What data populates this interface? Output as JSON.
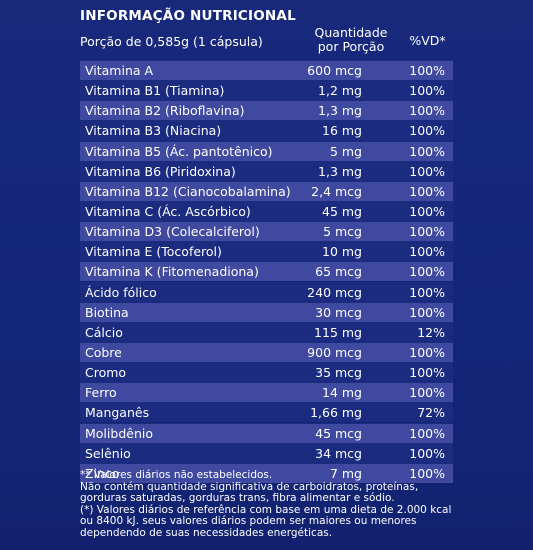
{
  "title": "INFORMAÇÃO NUTRICIONAL",
  "portion": "Porção de 0,585g (1 cápsula)",
  "headers": {
    "qty_line1": "Quantidade",
    "qty_line2": "por Porção",
    "vd": "%VD*"
  },
  "rows": [
    {
      "name": "Vitamina A",
      "qty": "600 mcg",
      "vd": "100%"
    },
    {
      "name": "Vitamina B1 (Tiamina)",
      "qty": "1,2 mg",
      "vd": "100%"
    },
    {
      "name": "Vitamina B2 (Riboflavina)",
      "qty": "1,3 mg",
      "vd": "100%"
    },
    {
      "name": "Vitamina B3 (Niacina)",
      "qty": "16 mg",
      "vd": "100%"
    },
    {
      "name": "Vitamina B5 (Ác. pantotênico)",
      "qty": "5 mg",
      "vd": "100%"
    },
    {
      "name": "Vitamina B6 (Piridoxina)",
      "qty": "1,3 mg",
      "vd": "100%"
    },
    {
      "name": "Vitamina B12 (Cianocobalamina)",
      "qty": "2,4 mcg",
      "vd": "100%"
    },
    {
      "name": "Vitamina C (Ác. Ascórbico)",
      "qty": "45 mg",
      "vd": "100%"
    },
    {
      "name": "Vitamina D3 (Colecalciferol)",
      "qty": "5 mcg",
      "vd": "100%"
    },
    {
      "name": "Vitamina E (Tocoferol)",
      "qty": "10 mg",
      "vd": "100%"
    },
    {
      "name": "Vitamina K (Fitomenadiona)",
      "qty": "65 mcg",
      "vd": "100%"
    },
    {
      "name": "Ácido fólico",
      "qty": "240 mcg",
      "vd": "100%"
    },
    {
      "name": "Biotina",
      "qty": "30 mcg",
      "vd": "100%"
    },
    {
      "name": "Cálcio",
      "qty": "115 mg",
      "vd": "12%"
    },
    {
      "name": "Cobre",
      "qty": "900 mcg",
      "vd": "100%"
    },
    {
      "name": "Cromo",
      "qty": "35 mcg",
      "vd": "100%"
    },
    {
      "name": "Ferro",
      "qty": "14 mg",
      "vd": "100%"
    },
    {
      "name": "Manganês",
      "qty": "1,66 mg",
      "vd": "72%"
    },
    {
      "name": "Molibdênio",
      "qty": "45 mcg",
      "vd": "100%"
    },
    {
      "name": "Selênio",
      "qty": "34 mcg",
      "vd": "100%"
    },
    {
      "name": "Zinco",
      "qty": "7 mg",
      "vd": "100%"
    }
  ],
  "footnotes": [
    "** Valores diários não estabelecidos.",
    "Não contém quantidade significativa de carboidratos, proteínas,",
    "gorduras saturadas, gorduras trans, fibra alimentar e sódio.",
    "(*) Valores diários de referência com base em uma dieta de 2.000 kcal",
    "ou 8400 kJ. seus valores diários podem ser maiores ou menores",
    "dependendo de suas necessidades energéticas."
  ],
  "colors": {
    "background": "#16287a",
    "row_shade": "#3f49a0",
    "row_plain": "#1a2b80",
    "text": "#ffffff"
  }
}
